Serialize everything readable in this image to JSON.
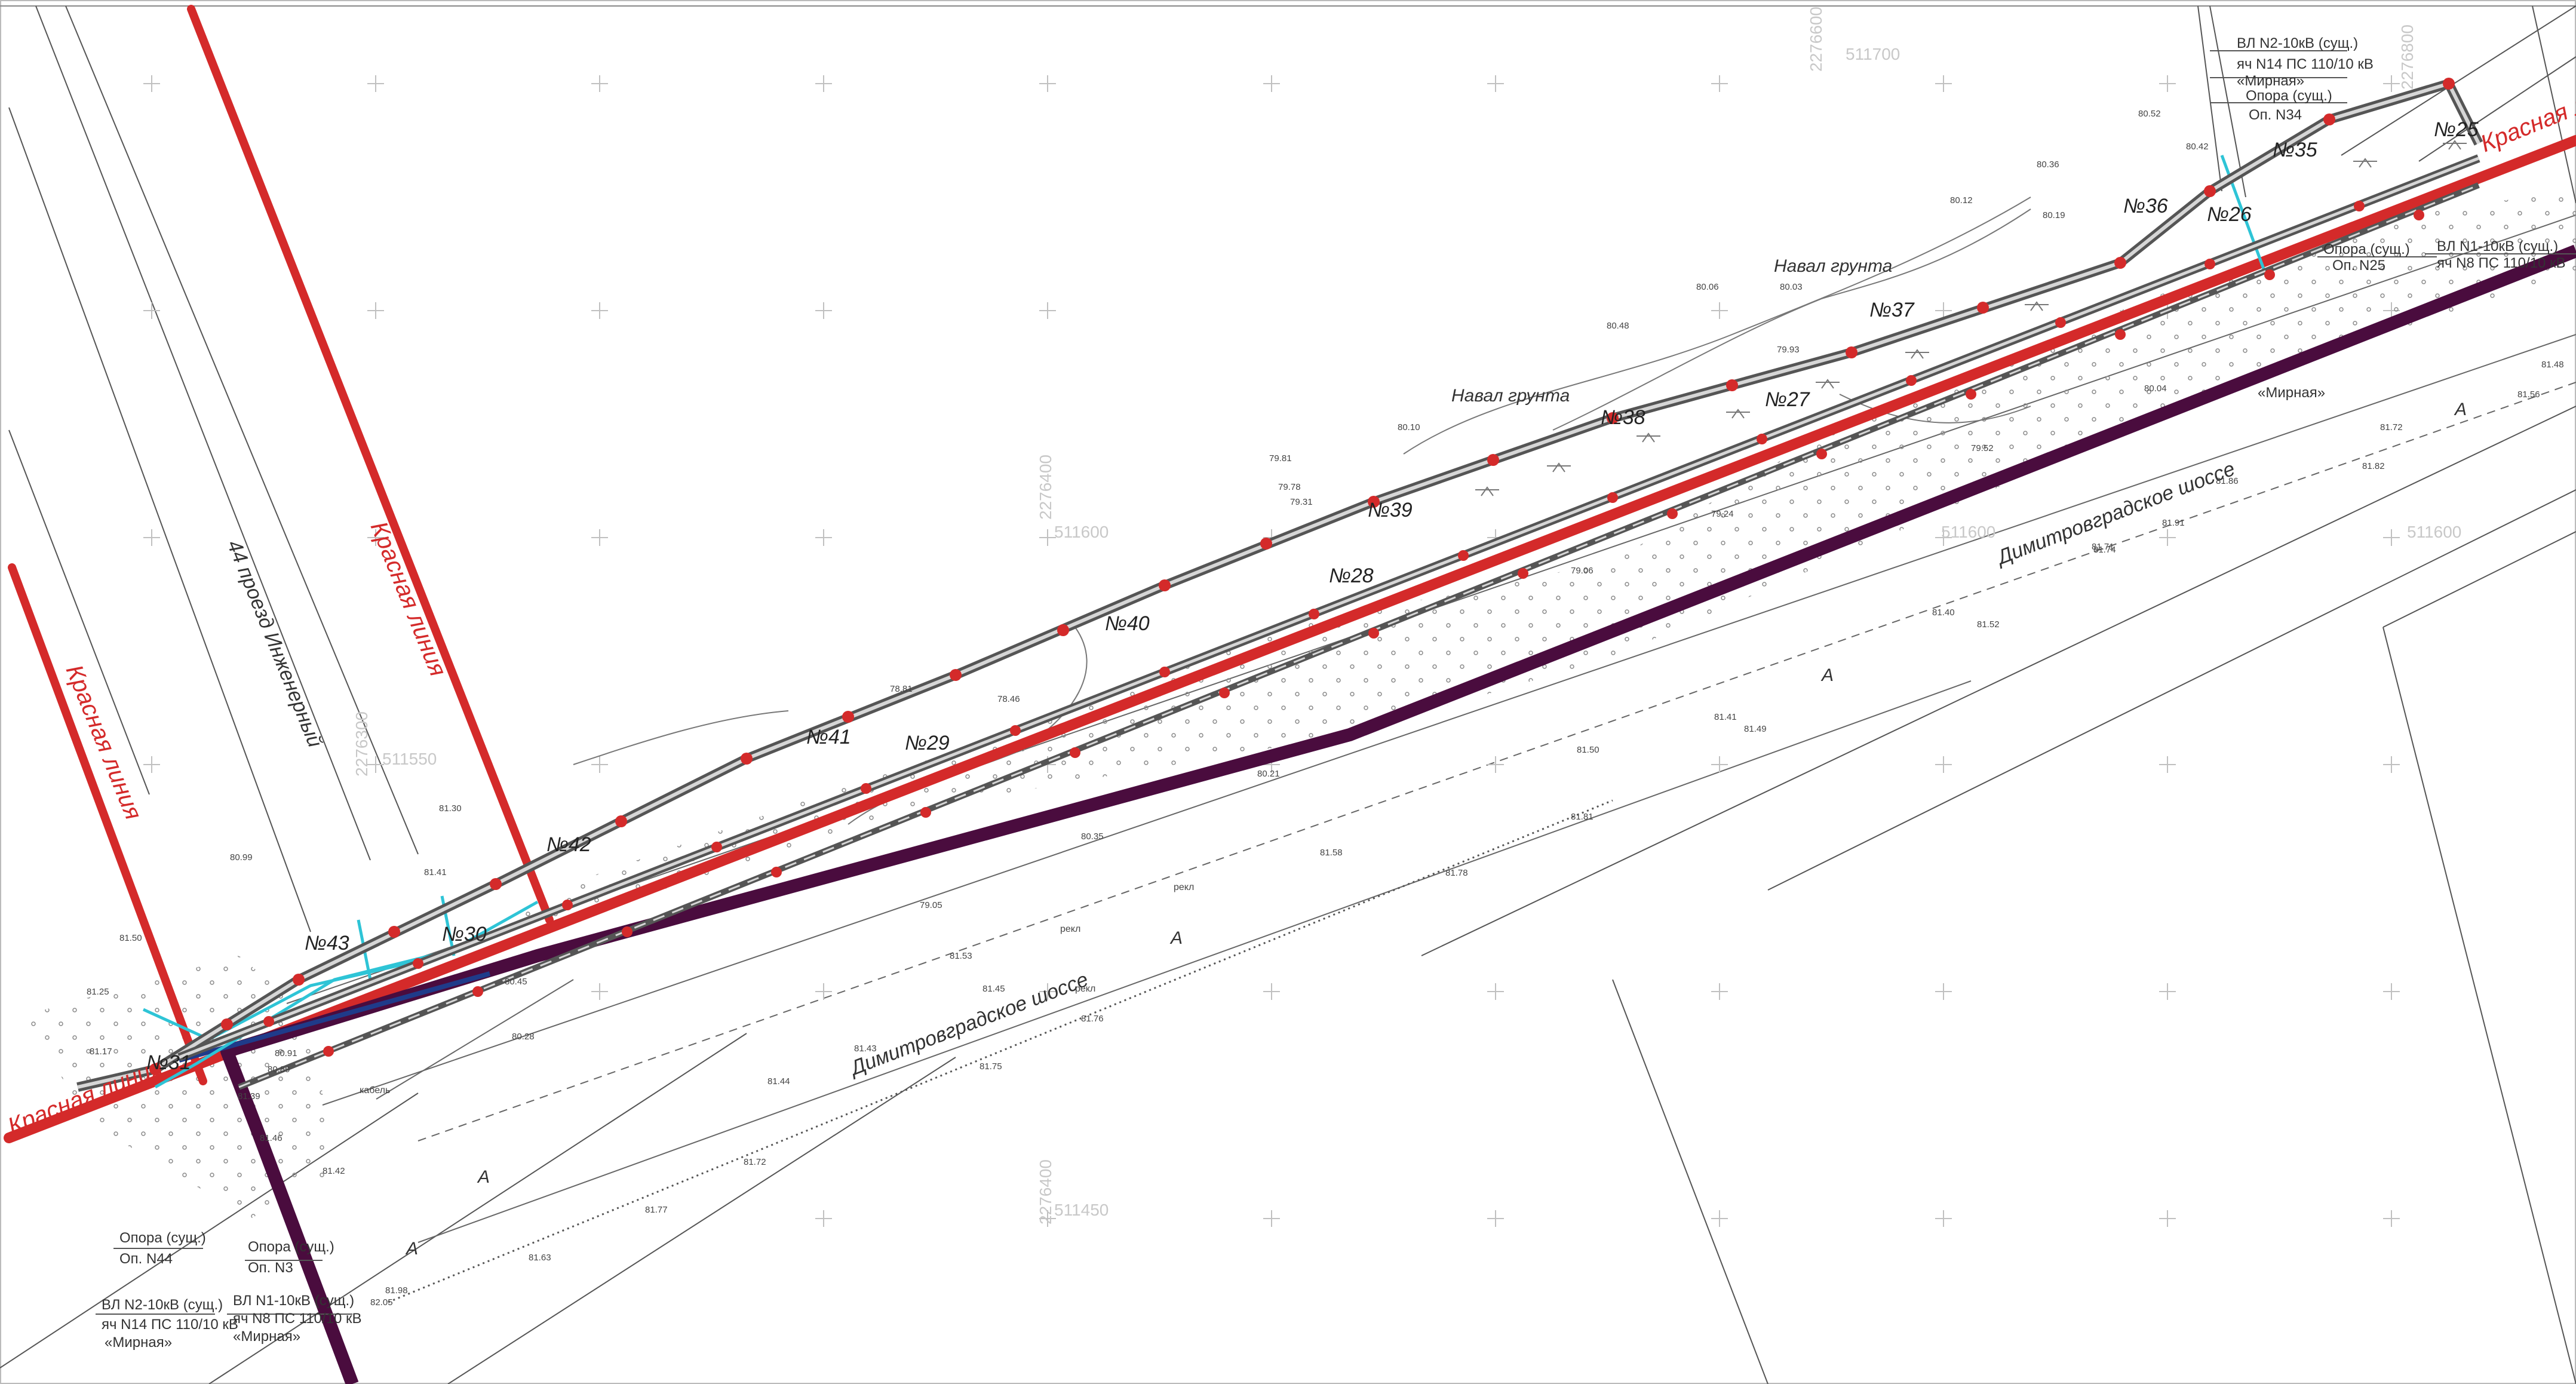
{
  "map": {
    "colors": {
      "red_line": "#d42a2a",
      "purple_line": "#4a0c3e",
      "cyan_line": "#2ec4d6",
      "cable_outline": "#555555",
      "cable_fill": "#bdbdbd",
      "marker": "#d42a2a",
      "hatch": "#9a9a9a"
    },
    "streets": {
      "proezd": "44 проезд Инженерный",
      "shosse_1": "Димитровградское шоссе",
      "shosse_2": "Димитровградское шоссе"
    },
    "red_line_label": "Красная линия",
    "soil_label": "Навал грунта",
    "road_mark": "A",
    "grid_labels": [
      "2276400",
      "2276300",
      "2276600",
      "2276800",
      "2276400",
      "511700",
      "511600",
      "511600",
      "511550",
      "511450",
      "511600"
    ],
    "pole_ids": [
      "№25",
      "№35",
      "№36",
      "№26",
      "№37",
      "№27",
      "№38",
      "№39",
      "№28",
      "№40",
      "№41",
      "№29",
      "№42",
      "№30",
      "№43",
      "№31"
    ],
    "elevations": [
      "80.52",
      "80.36",
      "80.42",
      "80.12",
      "80.19",
      "80.06",
      "80.03",
      "80.10",
      "79.81",
      "79.78",
      "79.31",
      "79.93",
      "79.05",
      "78.81",
      "78.46",
      "80.48",
      "81.50",
      "81.25",
      "81.17",
      "80.99",
      "81.30",
      "81.41",
      "81.39",
      "81.46",
      "81.42",
      "80.91",
      "80.89",
      "80.45",
      "80.28",
      "80.21",
      "81.58",
      "81.53",
      "81.45",
      "81.43",
      "81.44",
      "81.41",
      "81.49",
      "81.50",
      "81.40",
      "81.52",
      "81.74",
      "81.71",
      "81.91",
      "81.86",
      "81.72",
      "81.82",
      "81.56",
      "81.48",
      "81.81",
      "81.78",
      "81.76",
      "81.75",
      "81.72",
      "81.63",
      "81.98",
      "82.05",
      "80.04",
      "79.52",
      "79.24",
      "79.06",
      "80.35",
      "81.77"
    ],
    "callouts": {
      "top_right": {
        "line1": "ВЛ N2-10кВ (сущ.)",
        "line2": "яч N14 ПС 110/10 кВ",
        "line3": "«Мирная»",
        "line4": "Опора (сущ.)",
        "line5": "Оп. N34"
      },
      "right_mid": {
        "line1": "Опора (сущ.)",
        "line2": "Оп. N25",
        "line3": "ВЛ N1-10кВ (сущ.)",
        "line4": "яч N8 ПС 110/10 кВ"
      },
      "mirnaya": "«Мирная»",
      "bottom_left": {
        "pole_a_1": "Опора (сущ.)",
        "pole_a_2": "Оп. N44",
        "pole_b_1": "Опора (сущ.)",
        "pole_b_2": "Оп. N3",
        "vl2_1": "ВЛ N2-10кВ (сущ.)",
        "vl2_2": "яч N14 ПС 110/10 кВ",
        "vl2_3": "«Мирная»",
        "vl1_1": "ВЛ N1-10кВ (сущ.)",
        "vl1_2": "яч N8 ПС 110/10 кВ",
        "vl1_3": "«Мирная»"
      },
      "misc": {
        "rekl": "рекл",
        "kabel": "кабель"
      }
    }
  }
}
